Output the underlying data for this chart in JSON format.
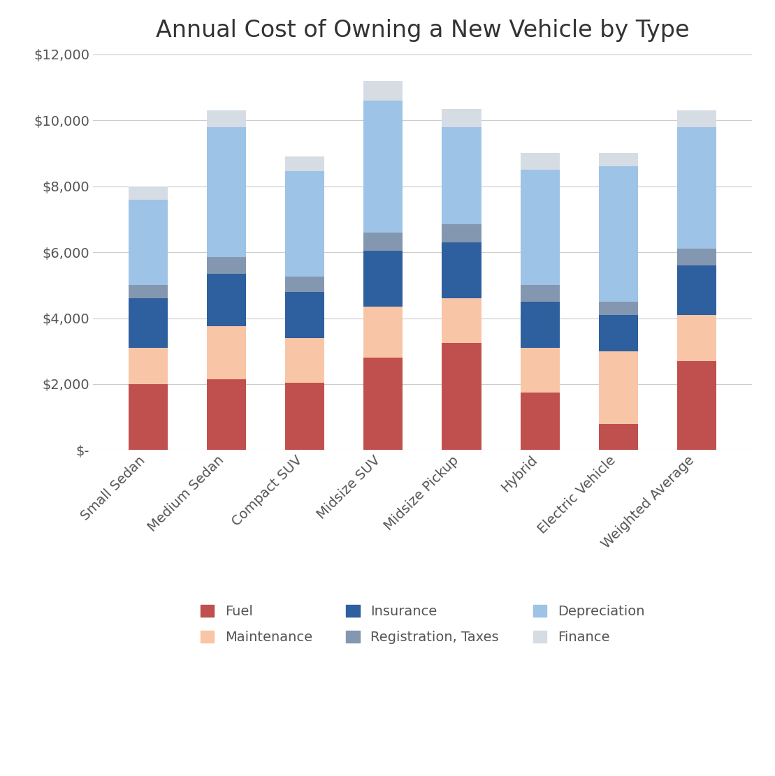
{
  "title": "Annual Cost of Owning a New Vehicle by Type",
  "categories": [
    "Small Sedan",
    "Medium Sedan",
    "Compact SUV",
    "Midsize SUV",
    "Midsize Pickup",
    "Hybrid",
    "Electric Vehicle",
    "Weighted Average"
  ],
  "series": {
    "Fuel": [
      2000,
      2150,
      2050,
      2800,
      3250,
      1750,
      800,
      2700
    ],
    "Maintenance": [
      1100,
      1600,
      1350,
      1550,
      1350,
      1350,
      2200,
      1400
    ],
    "Insurance": [
      1500,
      1600,
      1400,
      1700,
      1700,
      1400,
      1100,
      1500
    ],
    "Registration, Taxes": [
      400,
      500,
      450,
      550,
      550,
      500,
      400,
      500
    ],
    "Depreciation": [
      2600,
      3950,
      3200,
      4000,
      2950,
      3500,
      4100,
      3700
    ],
    "Finance": [
      400,
      500,
      450,
      600,
      550,
      500,
      400,
      500
    ]
  },
  "colors": {
    "Fuel": "#C0504D",
    "Maintenance": "#F9C5A7",
    "Insurance": "#2E5F9E",
    "Registration, Taxes": "#8497B0",
    "Depreciation": "#9DC3E6",
    "Finance": "#D6DCE4"
  },
  "ylim": [
    0,
    12000
  ],
  "yticks": [
    0,
    2000,
    4000,
    6000,
    8000,
    10000,
    12000
  ],
  "ytick_labels": [
    "$-",
    "$2,000",
    "$4,000",
    "$6,000",
    "$8,000",
    "$10,000",
    "$12,000"
  ],
  "background_color": "#ffffff",
  "grid_color": "#cccccc",
  "title_fontsize": 24,
  "tick_fontsize": 14,
  "legend_fontsize": 14,
  "bar_width": 0.5
}
